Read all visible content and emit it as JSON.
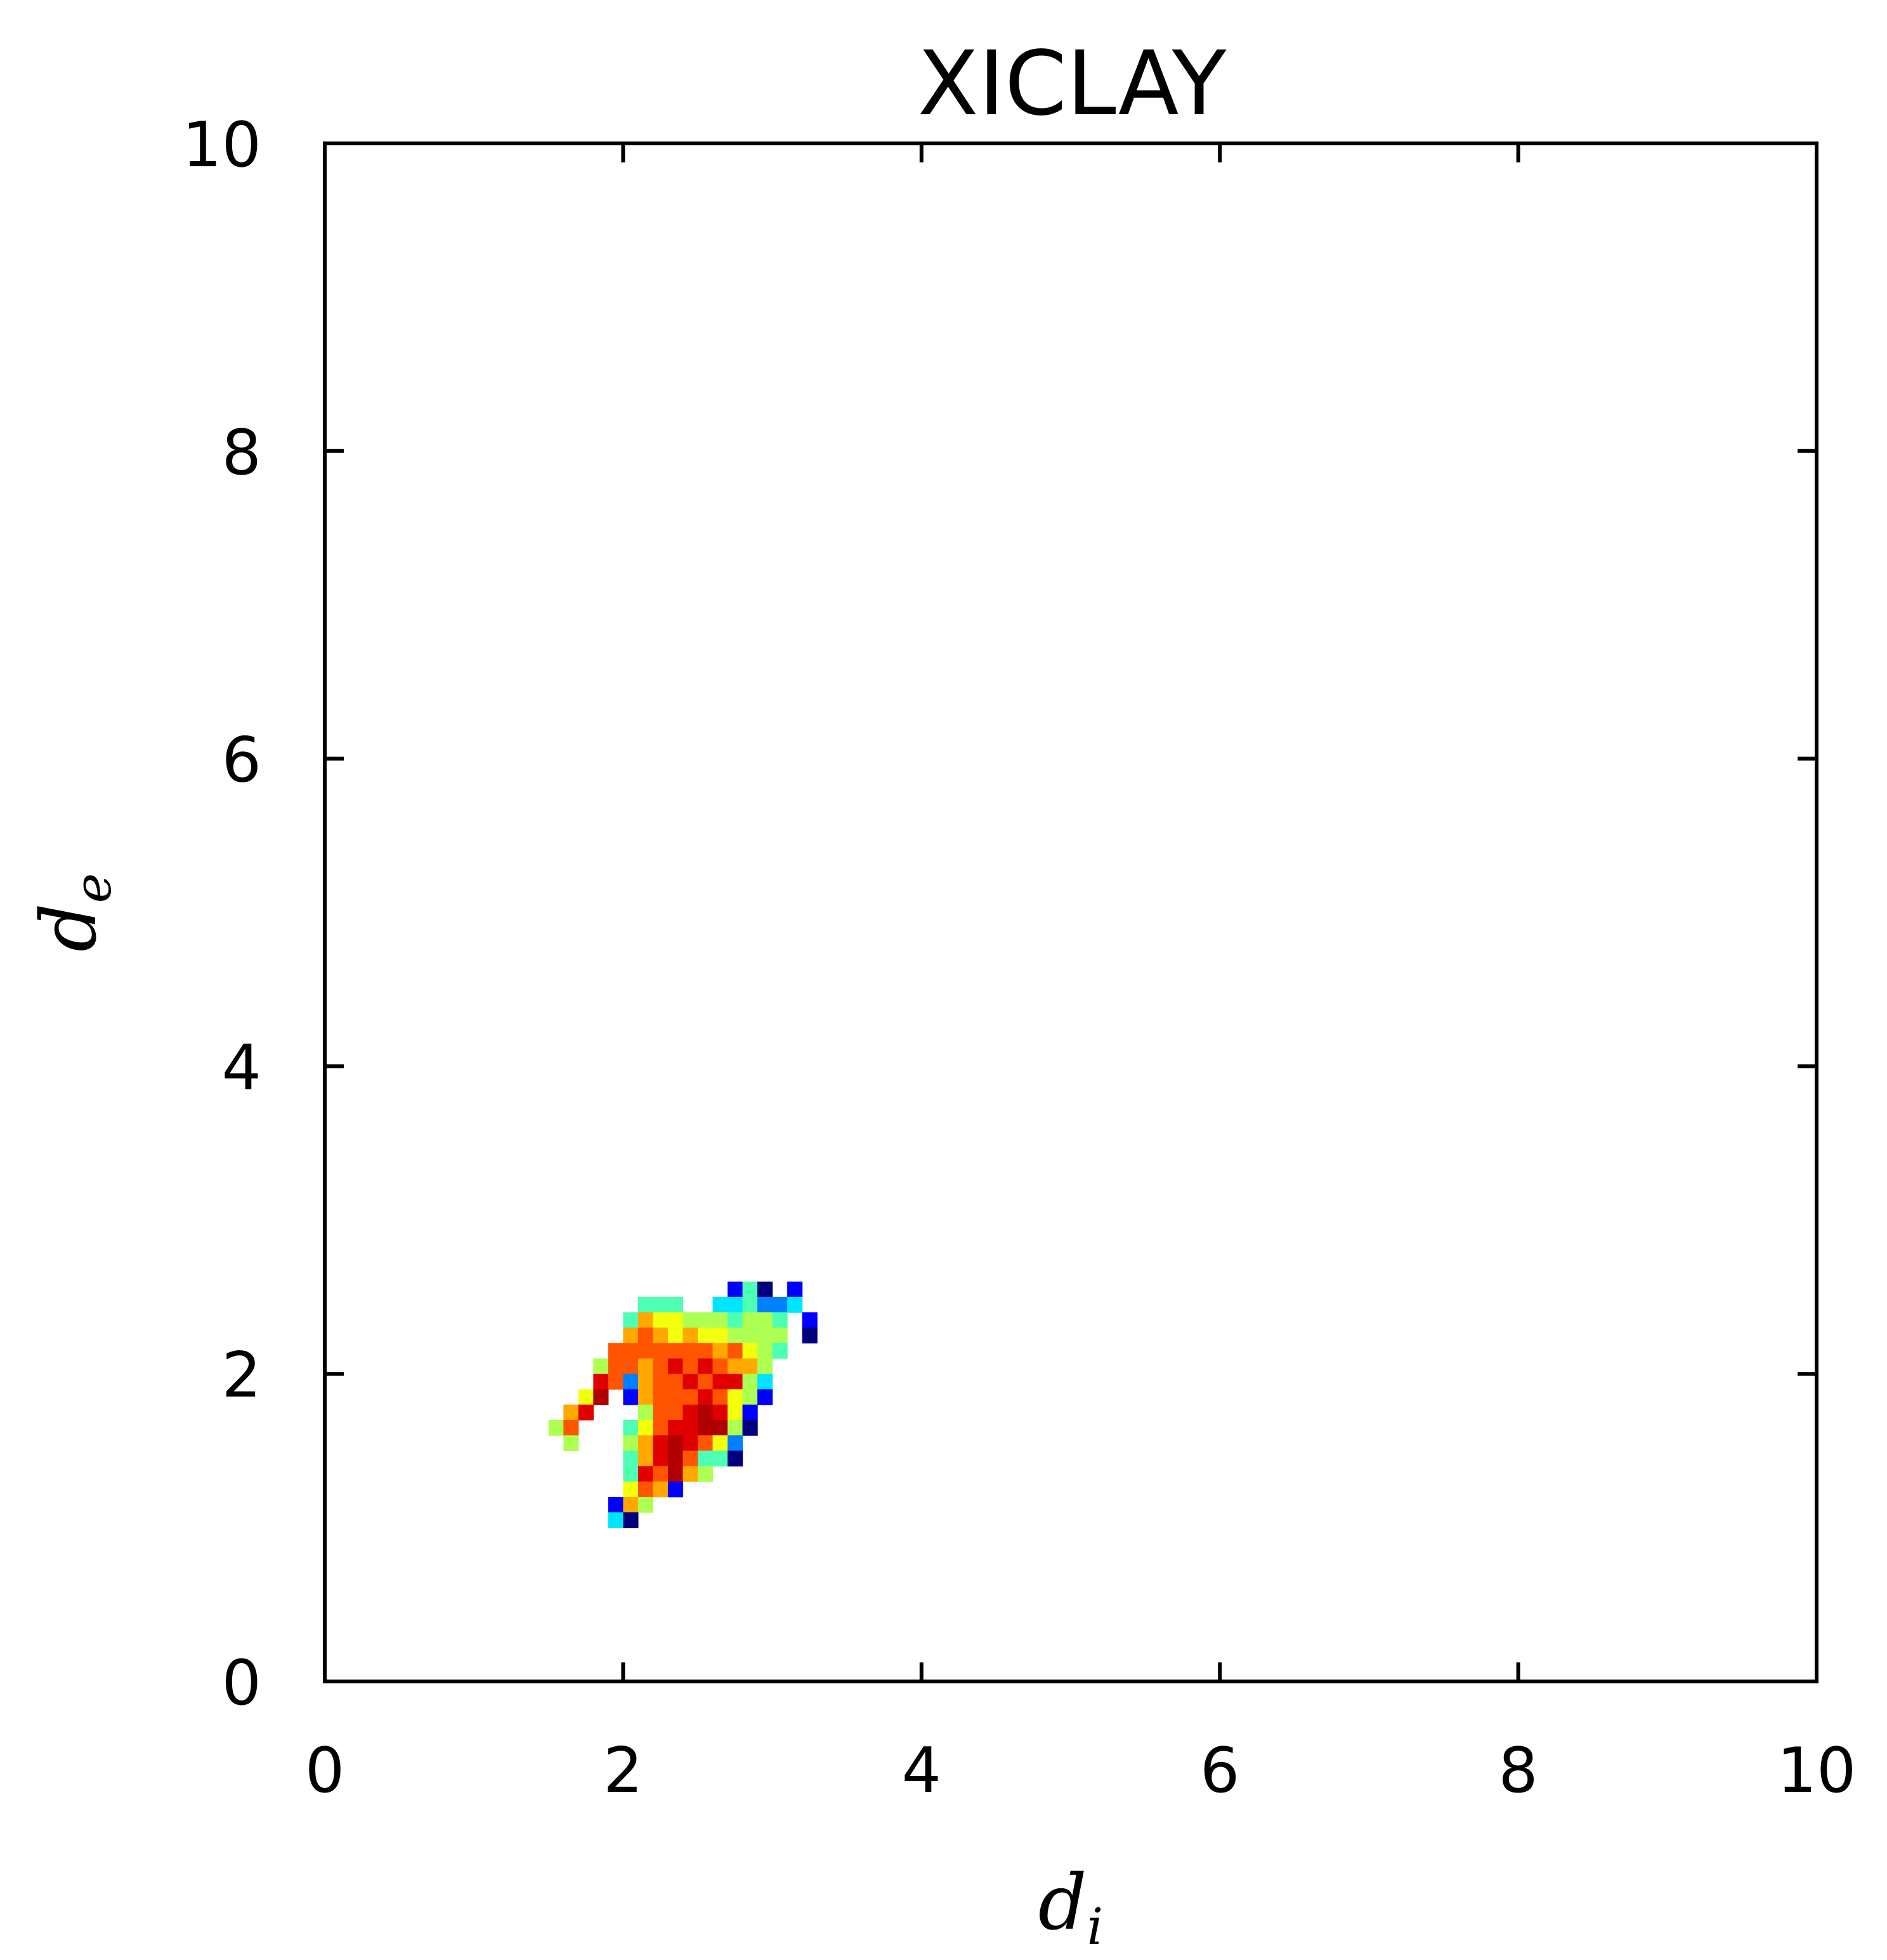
{
  "chart_data": {
    "type": "heatmap",
    "title": "XICLAY",
    "xlabel": {
      "main": "d",
      "sub": "i"
    },
    "ylabel": {
      "main": "d",
      "sub": "e"
    },
    "xlim": [
      0,
      10
    ],
    "ylim": [
      0,
      10
    ],
    "xticks": [
      "0",
      "2",
      "4",
      "6",
      "8",
      "10"
    ],
    "yticks": [
      "0",
      "2",
      "4",
      "6",
      "8",
      "10"
    ],
    "grid": false,
    "legend": "none",
    "colormap": "jet",
    "bin_size": 0.1,
    "palette": {
      "1": "#00007f",
      "2": "#0000ff",
      "3": "#007fff",
      "4": "#00e5ff",
      "5": "#4dffb3",
      "6": "#adff52",
      "7": "#f2ff0d",
      "8": "#ffa800",
      "9": "#ff5500",
      "10": "#e00000",
      "11": "#b00000"
    },
    "cells": [
      {
        "di": 2.7,
        "de": 2.5,
        "v": 2
      },
      {
        "di": 2.8,
        "de": 2.5,
        "v": 5
      },
      {
        "di": 2.9,
        "de": 2.5,
        "v": 1
      },
      {
        "di": 3.1,
        "de": 2.5,
        "v": 2
      },
      {
        "di": 2.1,
        "de": 2.4,
        "v": 5
      },
      {
        "di": 2.2,
        "de": 2.4,
        "v": 5
      },
      {
        "di": 2.3,
        "de": 2.4,
        "v": 5
      },
      {
        "di": 2.6,
        "de": 2.4,
        "v": 4
      },
      {
        "di": 2.7,
        "de": 2.4,
        "v": 4
      },
      {
        "di": 2.8,
        "de": 2.4,
        "v": 5
      },
      {
        "di": 2.9,
        "de": 2.4,
        "v": 3
      },
      {
        "di": 3.0,
        "de": 2.4,
        "v": 3
      },
      {
        "di": 3.1,
        "de": 2.4,
        "v": 4
      },
      {
        "di": 2.0,
        "de": 2.3,
        "v": 5
      },
      {
        "di": 2.1,
        "de": 2.3,
        "v": 8
      },
      {
        "di": 2.2,
        "de": 2.3,
        "v": 7
      },
      {
        "di": 2.3,
        "de": 2.3,
        "v": 7
      },
      {
        "di": 2.4,
        "de": 2.3,
        "v": 6
      },
      {
        "di": 2.5,
        "de": 2.3,
        "v": 6
      },
      {
        "di": 2.6,
        "de": 2.3,
        "v": 6
      },
      {
        "di": 2.7,
        "de": 2.3,
        "v": 5
      },
      {
        "di": 2.8,
        "de": 2.3,
        "v": 6
      },
      {
        "di": 2.9,
        "de": 2.3,
        "v": 6
      },
      {
        "di": 3.0,
        "de": 2.3,
        "v": 5
      },
      {
        "di": 3.2,
        "de": 2.3,
        "v": 2
      },
      {
        "di": 2.0,
        "de": 2.2,
        "v": 8
      },
      {
        "di": 2.1,
        "de": 2.2,
        "v": 9
      },
      {
        "di": 2.2,
        "de": 2.2,
        "v": 8
      },
      {
        "di": 2.3,
        "de": 2.2,
        "v": 7
      },
      {
        "di": 2.4,
        "de": 2.2,
        "v": 8
      },
      {
        "di": 2.5,
        "de": 2.2,
        "v": 7
      },
      {
        "di": 2.6,
        "de": 2.2,
        "v": 7
      },
      {
        "di": 2.7,
        "de": 2.2,
        "v": 6
      },
      {
        "di": 2.8,
        "de": 2.2,
        "v": 6
      },
      {
        "di": 2.9,
        "de": 2.2,
        "v": 6
      },
      {
        "di": 3.0,
        "de": 2.2,
        "v": 6
      },
      {
        "di": 3.2,
        "de": 2.2,
        "v": 1
      },
      {
        "di": 1.9,
        "de": 2.1,
        "v": 9
      },
      {
        "di": 2.0,
        "de": 2.1,
        "v": 9
      },
      {
        "di": 2.1,
        "de": 2.1,
        "v": 9
      },
      {
        "di": 2.2,
        "de": 2.1,
        "v": 9
      },
      {
        "di": 2.3,
        "de": 2.1,
        "v": 9
      },
      {
        "di": 2.4,
        "de": 2.1,
        "v": 9
      },
      {
        "di": 2.5,
        "de": 2.1,
        "v": 9
      },
      {
        "di": 2.6,
        "de": 2.1,
        "v": 8
      },
      {
        "di": 2.7,
        "de": 2.1,
        "v": 9
      },
      {
        "di": 2.8,
        "de": 2.1,
        "v": 7
      },
      {
        "di": 2.9,
        "de": 2.1,
        "v": 6
      },
      {
        "di": 3.0,
        "de": 2.1,
        "v": 5
      },
      {
        "di": 1.8,
        "de": 2.0,
        "v": 6
      },
      {
        "di": 1.9,
        "de": 2.0,
        "v": 9
      },
      {
        "di": 2.0,
        "de": 2.0,
        "v": 9
      },
      {
        "di": 2.1,
        "de": 2.0,
        "v": 8
      },
      {
        "di": 2.2,
        "de": 2.0,
        "v": 9
      },
      {
        "di": 2.3,
        "de": 2.0,
        "v": 10
      },
      {
        "di": 2.4,
        "de": 2.0,
        "v": 9
      },
      {
        "di": 2.5,
        "de": 2.0,
        "v": 10
      },
      {
        "di": 2.6,
        "de": 2.0,
        "v": 9
      },
      {
        "di": 2.7,
        "de": 2.0,
        "v": 8
      },
      {
        "di": 2.8,
        "de": 2.0,
        "v": 8
      },
      {
        "di": 2.9,
        "de": 2.0,
        "v": 6
      },
      {
        "di": 1.8,
        "de": 1.9,
        "v": 10
      },
      {
        "di": 1.9,
        "de": 1.9,
        "v": 9
      },
      {
        "di": 2.0,
        "de": 1.9,
        "v": 3
      },
      {
        "di": 2.1,
        "de": 1.9,
        "v": 8
      },
      {
        "di": 2.2,
        "de": 1.9,
        "v": 9
      },
      {
        "di": 2.3,
        "de": 1.9,
        "v": 9
      },
      {
        "di": 2.4,
        "de": 1.9,
        "v": 10
      },
      {
        "di": 2.5,
        "de": 1.9,
        "v": 9
      },
      {
        "di": 2.6,
        "de": 1.9,
        "v": 10
      },
      {
        "di": 2.7,
        "de": 1.9,
        "v": 10
      },
      {
        "di": 2.8,
        "de": 1.9,
        "v": 6
      },
      {
        "di": 2.9,
        "de": 1.9,
        "v": 4
      },
      {
        "di": 1.7,
        "de": 1.8,
        "v": 7
      },
      {
        "di": 1.8,
        "de": 1.8,
        "v": 11
      },
      {
        "di": 2.0,
        "de": 1.8,
        "v": 2
      },
      {
        "di": 2.1,
        "de": 1.8,
        "v": 8
      },
      {
        "di": 2.2,
        "de": 1.8,
        "v": 9
      },
      {
        "di": 2.3,
        "de": 1.8,
        "v": 9
      },
      {
        "di": 2.4,
        "de": 1.8,
        "v": 9
      },
      {
        "di": 2.5,
        "de": 1.8,
        "v": 10
      },
      {
        "di": 2.6,
        "de": 1.8,
        "v": 9
      },
      {
        "di": 2.7,
        "de": 1.8,
        "v": 7
      },
      {
        "di": 2.8,
        "de": 1.8,
        "v": 6
      },
      {
        "di": 2.9,
        "de": 1.8,
        "v": 2
      },
      {
        "di": 1.6,
        "de": 1.7,
        "v": 8
      },
      {
        "di": 1.7,
        "de": 1.7,
        "v": 10
      },
      {
        "di": 2.1,
        "de": 1.7,
        "v": 6
      },
      {
        "di": 2.2,
        "de": 1.7,
        "v": 9
      },
      {
        "di": 2.3,
        "de": 1.7,
        "v": 9
      },
      {
        "di": 2.4,
        "de": 1.7,
        "v": 10
      },
      {
        "di": 2.5,
        "de": 1.7,
        "v": 11
      },
      {
        "di": 2.6,
        "de": 1.7,
        "v": 10
      },
      {
        "di": 2.7,
        "de": 1.7,
        "v": 7
      },
      {
        "di": 2.8,
        "de": 1.7,
        "v": 2
      },
      {
        "di": 1.5,
        "de": 1.6,
        "v": 6
      },
      {
        "di": 1.6,
        "de": 1.6,
        "v": 9
      },
      {
        "di": 2.0,
        "de": 1.6,
        "v": 5
      },
      {
        "di": 2.1,
        "de": 1.6,
        "v": 7
      },
      {
        "di": 2.2,
        "de": 1.6,
        "v": 9
      },
      {
        "di": 2.3,
        "de": 1.6,
        "v": 10
      },
      {
        "di": 2.4,
        "de": 1.6,
        "v": 10
      },
      {
        "di": 2.5,
        "de": 1.6,
        "v": 11
      },
      {
        "di": 2.6,
        "de": 1.6,
        "v": 11
      },
      {
        "di": 2.7,
        "de": 1.6,
        "v": 6
      },
      {
        "di": 2.8,
        "de": 1.6,
        "v": 1
      },
      {
        "di": 1.6,
        "de": 1.5,
        "v": 6
      },
      {
        "di": 2.0,
        "de": 1.5,
        "v": 6
      },
      {
        "di": 2.1,
        "de": 1.5,
        "v": 8
      },
      {
        "di": 2.2,
        "de": 1.5,
        "v": 10
      },
      {
        "di": 2.3,
        "de": 1.5,
        "v": 11
      },
      {
        "di": 2.4,
        "de": 1.5,
        "v": 10
      },
      {
        "di": 2.5,
        "de": 1.5,
        "v": 9
      },
      {
        "di": 2.6,
        "de": 1.5,
        "v": 7
      },
      {
        "di": 2.7,
        "de": 1.5,
        "v": 3
      },
      {
        "di": 2.0,
        "de": 1.4,
        "v": 5
      },
      {
        "di": 2.1,
        "de": 1.4,
        "v": 8
      },
      {
        "di": 2.2,
        "de": 1.4,
        "v": 10
      },
      {
        "di": 2.3,
        "de": 1.4,
        "v": 11
      },
      {
        "di": 2.4,
        "de": 1.4,
        "v": 9
      },
      {
        "di": 2.5,
        "de": 1.4,
        "v": 5
      },
      {
        "di": 2.6,
        "de": 1.4,
        "v": 5
      },
      {
        "di": 2.7,
        "de": 1.4,
        "v": 1
      },
      {
        "di": 2.0,
        "de": 1.3,
        "v": 5
      },
      {
        "di": 2.1,
        "de": 1.3,
        "v": 10
      },
      {
        "di": 2.2,
        "de": 1.3,
        "v": 9
      },
      {
        "di": 2.3,
        "de": 1.3,
        "v": 11
      },
      {
        "di": 2.4,
        "de": 1.3,
        "v": 8
      },
      {
        "di": 2.5,
        "de": 1.3,
        "v": 6
      },
      {
        "di": 2.0,
        "de": 1.2,
        "v": 7
      },
      {
        "di": 2.1,
        "de": 1.2,
        "v": 9
      },
      {
        "di": 2.2,
        "de": 1.2,
        "v": 8
      },
      {
        "di": 2.3,
        "de": 1.2,
        "v": 2
      },
      {
        "di": 1.9,
        "de": 1.1,
        "v": 2
      },
      {
        "di": 2.0,
        "de": 1.1,
        "v": 8
      },
      {
        "di": 2.1,
        "de": 1.1,
        "v": 6
      },
      {
        "di": 1.9,
        "de": 1.0,
        "v": 4
      },
      {
        "di": 2.0,
        "de": 1.0,
        "v": 1
      }
    ]
  }
}
